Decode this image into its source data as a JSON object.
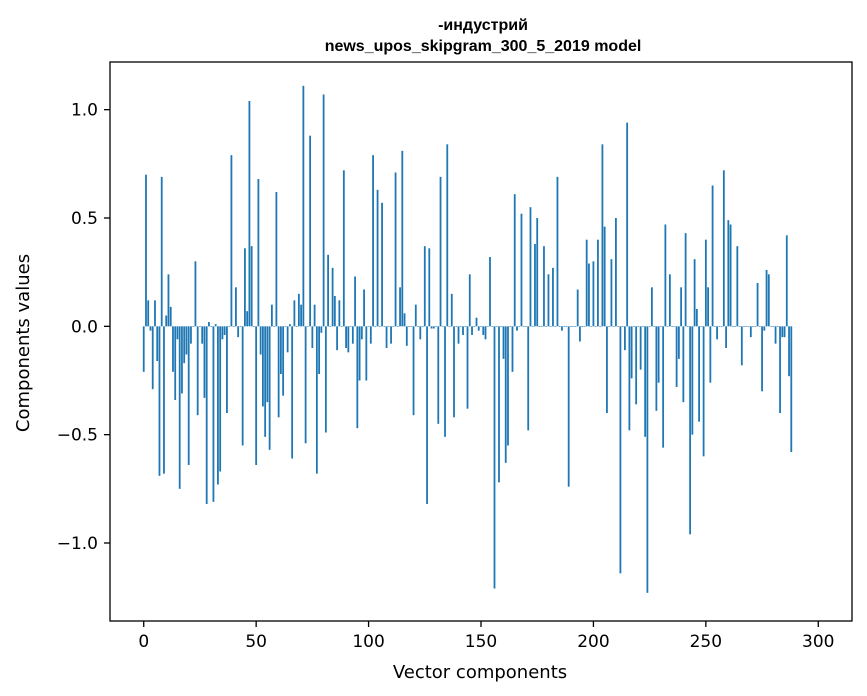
{
  "chart_data": {
    "type": "bar",
    "title_lines": [
      "-индустрий",
      "news_upos_skipgram_300_5_2019 model"
    ],
    "xlabel": "Vector components",
    "ylabel": "Components values",
    "xlim": [
      -15,
      315
    ],
    "ylim": [
      -1.36,
      1.22
    ],
    "x_ticks": [
      0,
      50,
      100,
      150,
      200,
      250,
      300
    ],
    "x_tick_labels": [
      "0",
      "50",
      "100",
      "150",
      "200",
      "250",
      "300"
    ],
    "y_ticks": [
      -1.0,
      -0.5,
      0.0,
      0.5,
      1.0
    ],
    "y_tick_labels": [
      "−1.0",
      "−0.5",
      "0.0",
      "0.5",
      "1.0"
    ],
    "bar_color": "#1f77b4",
    "grid": false,
    "series": [
      {
        "x_start": 0,
        "values": [
          -0.21,
          0.7,
          0.12,
          -0.02,
          -0.29,
          0.12,
          -0.16,
          -0.69,
          0.69,
          -0.68,
          0.05,
          0.24,
          0.09,
          -0.21,
          -0.34,
          -0.06,
          -0.75,
          -0.31,
          -0.17,
          -0.13,
          -0.64,
          -0.08,
          0.0,
          0.3,
          -0.41,
          0.0,
          -0.08,
          -0.33,
          -0.82,
          0.02,
          0.0,
          -0.81,
          0.01,
          -0.73,
          -0.67,
          -0.06,
          -0.04,
          -0.4,
          0.0,
          0.79,
          0.0,
          0.18,
          -0.05,
          0.0,
          -0.55,
          0.36,
          0.07,
          1.04,
          0.37,
          0.0,
          -0.64,
          0.68,
          -0.13,
          -0.37,
          -0.51,
          -0.35,
          -0.57,
          0.1,
          0.0,
          0.62,
          -0.42,
          -0.22,
          -0.32,
          0.0,
          -0.12,
          0.01,
          -0.61,
          0.12,
          0.0,
          0.15,
          0.1,
          1.11,
          -0.54,
          0.0,
          0.88,
          -0.1,
          0.1,
          -0.68,
          -0.22,
          -0.03,
          1.07,
          -0.49,
          0.33,
          0.0,
          0.27,
          0.14,
          -0.11,
          0.12,
          0.0,
          0.72,
          -0.1,
          -0.12,
          0.0,
          -0.08,
          0.23,
          -0.47,
          -0.25,
          -0.06,
          0.17,
          -0.25,
          0.0,
          -0.08,
          0.79,
          0.0,
          0.63,
          0.0,
          0.57,
          0.0,
          -0.1,
          0.0,
          -0.08,
          0.0,
          0.71,
          0.0,
          0.18,
          0.81,
          0.06,
          -0.09,
          0.0,
          0.0,
          -0.41,
          0.1,
          0.0,
          -0.06,
          0.0,
          0.37,
          -0.82,
          0.36,
          -0.01,
          -0.01,
          0.0,
          -0.45,
          0.69,
          0.0,
          -0.51,
          0.84,
          0.0,
          0.15,
          -0.42,
          0.0,
          -0.08,
          0.0,
          -0.04,
          0.0,
          -0.38,
          0.24,
          -0.04,
          0.0,
          0.04,
          -0.02,
          0.0,
          -0.04,
          -0.06,
          0.0,
          0.32,
          0.0,
          -1.21,
          0.0,
          -0.72,
          0.0,
          -0.15,
          -0.63,
          -0.55,
          0.0,
          -0.21,
          0.61,
          -0.02,
          0.0,
          0.52,
          0.0,
          0.0,
          -0.48,
          0.55,
          0.0,
          0.38,
          0.5,
          0.0,
          0.0,
          0.37,
          0.0,
          0.24,
          0.0,
          0.27,
          0.0,
          0.69,
          0.0,
          -0.02,
          0.0,
          0.0,
          -0.74,
          0.0,
          0.0,
          0.0,
          0.17,
          -0.07,
          0.0,
          0.0,
          0.4,
          0.29,
          0.0,
          0.3,
          0.0,
          0.4,
          0.0,
          0.84,
          0.46,
          -0.4,
          0.0,
          0.31,
          0.0,
          0.5,
          0.0,
          -1.14,
          0.0,
          -0.11,
          0.94,
          -0.48,
          -0.24,
          0.0,
          -0.36,
          0.0,
          -0.2,
          0.0,
          -0.51,
          -1.23,
          0.0,
          0.18,
          0.0,
          -0.39,
          -0.26,
          0.0,
          -0.56,
          0.47,
          0.0,
          0.24,
          0.0,
          0.0,
          -0.28,
          -0.15,
          0.18,
          -0.35,
          0.43,
          0.0,
          -0.96,
          -0.5,
          0.31,
          0.08,
          -0.44,
          0.0,
          -0.6,
          0.4,
          0.18,
          -0.26,
          0.65,
          0.0,
          -0.06,
          0.0,
          0.0,
          0.72,
          -0.1,
          0.49,
          0.47,
          0.0,
          0.0,
          0.37,
          0.0,
          -0.18,
          0.0,
          0.0,
          0.0,
          -0.05,
          0.0,
          0.0,
          0.2,
          0.0,
          -0.3,
          -0.02,
          0.26,
          0.24,
          0.0,
          0.0,
          -0.08,
          0.0,
          -0.4,
          -0.05,
          -0.05,
          0.42,
          -0.23,
          -0.58
        ]
      }
    ]
  }
}
